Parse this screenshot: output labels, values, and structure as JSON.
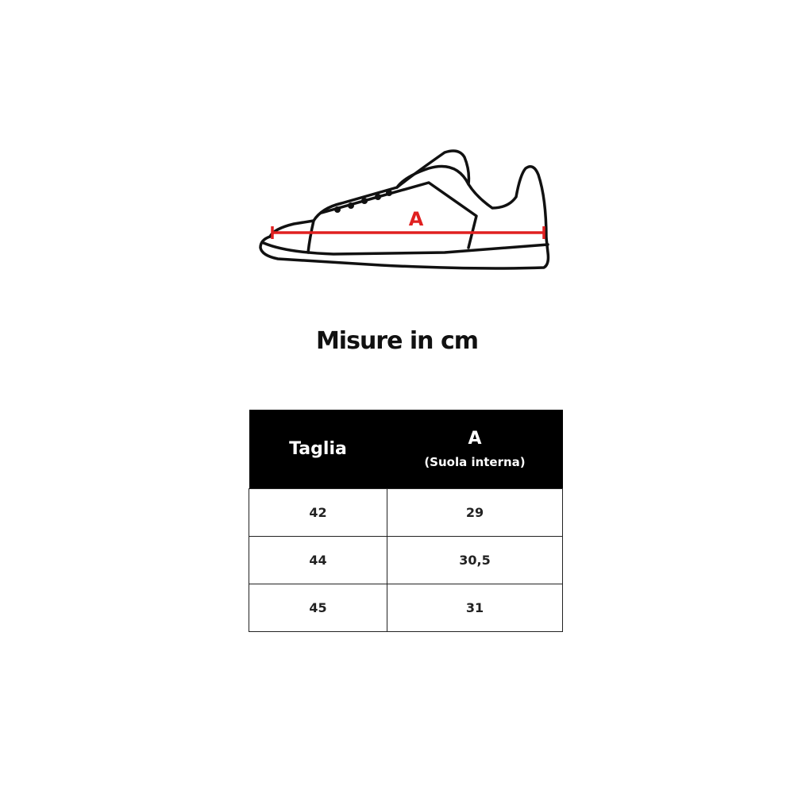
{
  "diagram": {
    "measure_label": "A",
    "accent_color": "#e02020"
  },
  "title": "Misure in cm",
  "table": {
    "headers": {
      "size": "Taglia",
      "a": "A",
      "a_sub": "(Suola interna)"
    },
    "rows": [
      {
        "size": "42",
        "a": "29"
      },
      {
        "size": "44",
        "a": "30,5"
      },
      {
        "size": "45",
        "a": "31"
      }
    ]
  }
}
